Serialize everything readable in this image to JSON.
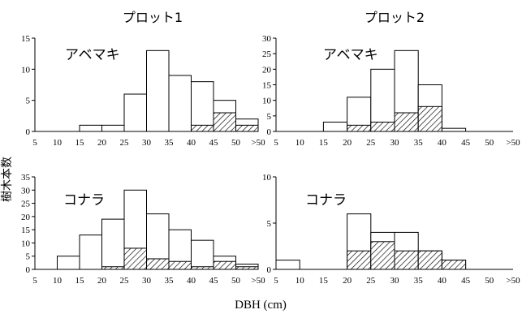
{
  "figure": {
    "column_titles": [
      "プロット1",
      "プロット2"
    ],
    "ylabel": "樹木本数",
    "xlabel": "DBH (cm)",
    "x_ticks": [
      "5",
      "10",
      "15",
      "20",
      "25",
      "30",
      "35",
      "40",
      "45",
      "50",
      ">50"
    ]
  },
  "chart_data": [
    {
      "type": "bar",
      "plot": "プロット1",
      "species": "アベマキ",
      "categories": [
        "5-10",
        "10-15",
        "15-20",
        "20-25",
        "25-30",
        "30-35",
        "35-40",
        "40-45",
        "45-50",
        ">50"
      ],
      "series": [
        {
          "values": [
            0,
            0,
            1,
            1,
            6,
            13,
            9,
            8,
            5,
            2
          ]
        },
        {
          "pattern": "hatched",
          "values": [
            0,
            0,
            0,
            0,
            0,
            0,
            0,
            1,
            3,
            1
          ]
        }
      ],
      "ylim": [
        0,
        15
      ],
      "y_ticks": [
        0,
        5,
        10,
        15
      ]
    },
    {
      "type": "bar",
      "plot": "プロット2",
      "species": "アベマキ",
      "categories": [
        "5-10",
        "10-15",
        "15-20",
        "20-25",
        "25-30",
        "30-35",
        "35-40",
        "40-45",
        "45-50",
        ">50"
      ],
      "series": [
        {
          "values": [
            0,
            0,
            3,
            11,
            20,
            26,
            15,
            1,
            0,
            0
          ]
        },
        {
          "pattern": "hatched",
          "values": [
            0,
            0,
            0,
            2,
            3,
            6,
            8,
            0,
            0,
            0
          ]
        }
      ],
      "ylim": [
        0,
        30
      ],
      "y_ticks": [
        0,
        5,
        10,
        15,
        20,
        25,
        30
      ]
    },
    {
      "type": "bar",
      "plot": "プロット1",
      "species": "コナラ",
      "categories": [
        "5-10",
        "10-15",
        "15-20",
        "20-25",
        "25-30",
        "30-35",
        "35-40",
        "40-45",
        "45-50",
        ">50"
      ],
      "series": [
        {
          "values": [
            0,
            5,
            13,
            19,
            30,
            21,
            15,
            11,
            5,
            2
          ]
        },
        {
          "pattern": "hatched",
          "values": [
            0,
            0,
            0,
            1,
            8,
            4,
            3,
            1,
            3,
            1
          ]
        }
      ],
      "ylim": [
        0,
        35
      ],
      "y_ticks": [
        0,
        5,
        10,
        15,
        20,
        25,
        30,
        35
      ]
    },
    {
      "type": "bar",
      "plot": "プロット2",
      "species": "コナラ",
      "categories": [
        "5-10",
        "10-15",
        "15-20",
        "20-25",
        "25-30",
        "30-35",
        "35-40",
        "40-45",
        "45-50",
        ">50"
      ],
      "series": [
        {
          "values": [
            1,
            0,
            0,
            6,
            4,
            4,
            2,
            1,
            0,
            0
          ]
        },
        {
          "pattern": "hatched",
          "values": [
            0,
            0,
            0,
            2,
            3,
            2,
            2,
            1,
            0,
            0
          ]
        }
      ],
      "ylim": [
        0,
        10
      ],
      "y_ticks": [
        0,
        5,
        10
      ]
    }
  ]
}
